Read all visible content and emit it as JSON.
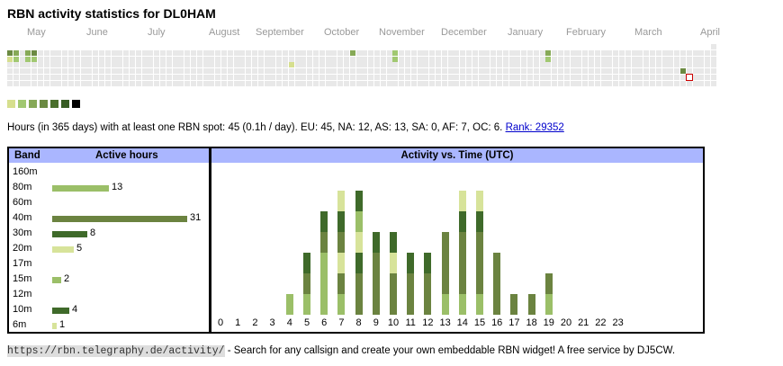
{
  "title": "RBN activity statistics for DL0HAM",
  "months": [
    "May",
    "June",
    "July",
    "August",
    "September",
    "October",
    "November",
    "December",
    "January",
    "February",
    "March",
    "April"
  ],
  "legend_colors": [
    "#d6df8e",
    "#a1c871",
    "#86a957",
    "#6b8a42",
    "#4a6f2c",
    "#375c24",
    "#000000"
  ],
  "summary": {
    "text": "Hours (in 365 days) with at least one RBN spot: 45 (0.1h / day). EU: 45, NA: 12, AS: 13, SA: 0, AF: 7, OC: 6.",
    "rank_label": "Rank: 29352"
  },
  "bands_panel": {
    "band_header": "Band",
    "hours_header": "Active hours",
    "bands": [
      {
        "name": "160m",
        "hours": 0,
        "color": "#ffffff"
      },
      {
        "name": "80m",
        "hours": 13,
        "color": "#9bbf68"
      },
      {
        "name": "60m",
        "hours": 0,
        "color": "#ffffff"
      },
      {
        "name": "40m",
        "hours": 31,
        "color": "#6b8340"
      },
      {
        "name": "30m",
        "hours": 8,
        "color": "#3f6a2a"
      },
      {
        "name": "20m",
        "hours": 5,
        "color": "#d7e39a"
      },
      {
        "name": "17m",
        "hours": 0,
        "color": "#ffffff"
      },
      {
        "name": "15m",
        "hours": 2,
        "color": "#9bbf68"
      },
      {
        "name": "12m",
        "hours": 0,
        "color": "#ffffff"
      },
      {
        "name": "10m",
        "hours": 4,
        "color": "#3f6a2a"
      },
      {
        "name": "6m",
        "hours": 1,
        "color": "#d7e39a"
      }
    ]
  },
  "activity_panel": {
    "title": "Activity vs. Time (UTC)",
    "hours": [
      "0",
      "1",
      "2",
      "3",
      "4",
      "5",
      "6",
      "7",
      "8",
      "9",
      "10",
      "11",
      "12",
      "13",
      "14",
      "15",
      "16",
      "17",
      "18",
      "19",
      "20",
      "21",
      "22",
      "23"
    ],
    "stacks": [
      [],
      [],
      [],
      [],
      [
        "#9bbf68"
      ],
      [
        "#9bbf68",
        "#6b8340",
        "#3f6a2a"
      ],
      [
        "#9bbf68",
        "#9bbf68",
        "#9bbf68",
        "#6b8340",
        "#3f6a2a"
      ],
      [
        "#9bbf68",
        "#6b8340",
        "#d7e39a",
        "#6b8340",
        "#3f6a2a",
        "#d7e39a"
      ],
      [
        "#6b8340",
        "#6b8340",
        "#3f6a2a",
        "#d7e39a",
        "#9bbf68",
        "#3f6a2a"
      ],
      [
        "#6b8340",
        "#6b8340",
        "#6b8340",
        "#3f6a2a"
      ],
      [
        "#6b8340",
        "#6b8340",
        "#d7e39a",
        "#3f6a2a"
      ],
      [
        "#6b8340",
        "#6b8340",
        "#3f6a2a"
      ],
      [
        "#6b8340",
        "#6b8340",
        "#3f6a2a"
      ],
      [
        "#9bbf68",
        "#6b8340",
        "#6b8340",
        "#6b8340"
      ],
      [
        "#9bbf68",
        "#6b8340",
        "#6b8340",
        "#6b8340",
        "#3f6a2a",
        "#d7e39a"
      ],
      [
        "#9bbf68",
        "#6b8340",
        "#6b8340",
        "#6b8340",
        "#3f6a2a",
        "#d7e39a"
      ],
      [
        "#6b8340",
        "#6b8340",
        "#6b8340"
      ],
      [
        "#6b8340"
      ],
      [
        "#6b8340"
      ],
      [
        "#9bbf68",
        "#6b8340"
      ],
      [],
      [],
      [],
      []
    ]
  },
  "footer": {
    "url": "https://rbn.telegraphy.de/activity/",
    "text": " - Search for any callsign and create your own embeddable RBN widget! A free service by DJ5CW."
  }
}
